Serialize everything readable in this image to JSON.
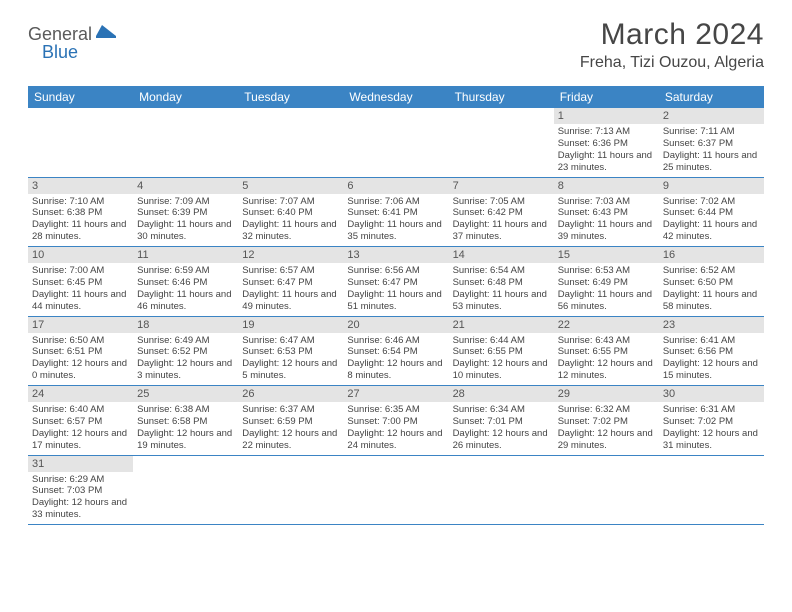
{
  "logo": {
    "part1": "General",
    "part2": "Blue"
  },
  "title": "March 2024",
  "location": "Freha, Tizi Ouzou, Algeria",
  "colors": {
    "header_bar": "#3b84c4",
    "day_num_bg": "#e4e4e4",
    "text": "#444444",
    "title_text": "#464646",
    "logo_gray": "#5a5a5a",
    "logo_blue": "#2a72b5",
    "row_border": "#3b84c4"
  },
  "weekdays": [
    "Sunday",
    "Monday",
    "Tuesday",
    "Wednesday",
    "Thursday",
    "Friday",
    "Saturday"
  ],
  "weeks": [
    [
      {
        "empty": true
      },
      {
        "empty": true
      },
      {
        "empty": true
      },
      {
        "empty": true
      },
      {
        "empty": true
      },
      {
        "num": "1",
        "sunrise": "Sunrise: 7:13 AM",
        "sunset": "Sunset: 6:36 PM",
        "daylight": "Daylight: 11 hours and 23 minutes."
      },
      {
        "num": "2",
        "sunrise": "Sunrise: 7:11 AM",
        "sunset": "Sunset: 6:37 PM",
        "daylight": "Daylight: 11 hours and 25 minutes."
      }
    ],
    [
      {
        "num": "3",
        "sunrise": "Sunrise: 7:10 AM",
        "sunset": "Sunset: 6:38 PM",
        "daylight": "Daylight: 11 hours and 28 minutes."
      },
      {
        "num": "4",
        "sunrise": "Sunrise: 7:09 AM",
        "sunset": "Sunset: 6:39 PM",
        "daylight": "Daylight: 11 hours and 30 minutes."
      },
      {
        "num": "5",
        "sunrise": "Sunrise: 7:07 AM",
        "sunset": "Sunset: 6:40 PM",
        "daylight": "Daylight: 11 hours and 32 minutes."
      },
      {
        "num": "6",
        "sunrise": "Sunrise: 7:06 AM",
        "sunset": "Sunset: 6:41 PM",
        "daylight": "Daylight: 11 hours and 35 minutes."
      },
      {
        "num": "7",
        "sunrise": "Sunrise: 7:05 AM",
        "sunset": "Sunset: 6:42 PM",
        "daylight": "Daylight: 11 hours and 37 minutes."
      },
      {
        "num": "8",
        "sunrise": "Sunrise: 7:03 AM",
        "sunset": "Sunset: 6:43 PM",
        "daylight": "Daylight: 11 hours and 39 minutes."
      },
      {
        "num": "9",
        "sunrise": "Sunrise: 7:02 AM",
        "sunset": "Sunset: 6:44 PM",
        "daylight": "Daylight: 11 hours and 42 minutes."
      }
    ],
    [
      {
        "num": "10",
        "sunrise": "Sunrise: 7:00 AM",
        "sunset": "Sunset: 6:45 PM",
        "daylight": "Daylight: 11 hours and 44 minutes."
      },
      {
        "num": "11",
        "sunrise": "Sunrise: 6:59 AM",
        "sunset": "Sunset: 6:46 PM",
        "daylight": "Daylight: 11 hours and 46 minutes."
      },
      {
        "num": "12",
        "sunrise": "Sunrise: 6:57 AM",
        "sunset": "Sunset: 6:47 PM",
        "daylight": "Daylight: 11 hours and 49 minutes."
      },
      {
        "num": "13",
        "sunrise": "Sunrise: 6:56 AM",
        "sunset": "Sunset: 6:47 PM",
        "daylight": "Daylight: 11 hours and 51 minutes."
      },
      {
        "num": "14",
        "sunrise": "Sunrise: 6:54 AM",
        "sunset": "Sunset: 6:48 PM",
        "daylight": "Daylight: 11 hours and 53 minutes."
      },
      {
        "num": "15",
        "sunrise": "Sunrise: 6:53 AM",
        "sunset": "Sunset: 6:49 PM",
        "daylight": "Daylight: 11 hours and 56 minutes."
      },
      {
        "num": "16",
        "sunrise": "Sunrise: 6:52 AM",
        "sunset": "Sunset: 6:50 PM",
        "daylight": "Daylight: 11 hours and 58 minutes."
      }
    ],
    [
      {
        "num": "17",
        "sunrise": "Sunrise: 6:50 AM",
        "sunset": "Sunset: 6:51 PM",
        "daylight": "Daylight: 12 hours and 0 minutes."
      },
      {
        "num": "18",
        "sunrise": "Sunrise: 6:49 AM",
        "sunset": "Sunset: 6:52 PM",
        "daylight": "Daylight: 12 hours and 3 minutes."
      },
      {
        "num": "19",
        "sunrise": "Sunrise: 6:47 AM",
        "sunset": "Sunset: 6:53 PM",
        "daylight": "Daylight: 12 hours and 5 minutes."
      },
      {
        "num": "20",
        "sunrise": "Sunrise: 6:46 AM",
        "sunset": "Sunset: 6:54 PM",
        "daylight": "Daylight: 12 hours and 8 minutes."
      },
      {
        "num": "21",
        "sunrise": "Sunrise: 6:44 AM",
        "sunset": "Sunset: 6:55 PM",
        "daylight": "Daylight: 12 hours and 10 minutes."
      },
      {
        "num": "22",
        "sunrise": "Sunrise: 6:43 AM",
        "sunset": "Sunset: 6:55 PM",
        "daylight": "Daylight: 12 hours and 12 minutes."
      },
      {
        "num": "23",
        "sunrise": "Sunrise: 6:41 AM",
        "sunset": "Sunset: 6:56 PM",
        "daylight": "Daylight: 12 hours and 15 minutes."
      }
    ],
    [
      {
        "num": "24",
        "sunrise": "Sunrise: 6:40 AM",
        "sunset": "Sunset: 6:57 PM",
        "daylight": "Daylight: 12 hours and 17 minutes."
      },
      {
        "num": "25",
        "sunrise": "Sunrise: 6:38 AM",
        "sunset": "Sunset: 6:58 PM",
        "daylight": "Daylight: 12 hours and 19 minutes."
      },
      {
        "num": "26",
        "sunrise": "Sunrise: 6:37 AM",
        "sunset": "Sunset: 6:59 PM",
        "daylight": "Daylight: 12 hours and 22 minutes."
      },
      {
        "num": "27",
        "sunrise": "Sunrise: 6:35 AM",
        "sunset": "Sunset: 7:00 PM",
        "daylight": "Daylight: 12 hours and 24 minutes."
      },
      {
        "num": "28",
        "sunrise": "Sunrise: 6:34 AM",
        "sunset": "Sunset: 7:01 PM",
        "daylight": "Daylight: 12 hours and 26 minutes."
      },
      {
        "num": "29",
        "sunrise": "Sunrise: 6:32 AM",
        "sunset": "Sunset: 7:02 PM",
        "daylight": "Daylight: 12 hours and 29 minutes."
      },
      {
        "num": "30",
        "sunrise": "Sunrise: 6:31 AM",
        "sunset": "Sunset: 7:02 PM",
        "daylight": "Daylight: 12 hours and 31 minutes."
      }
    ],
    [
      {
        "num": "31",
        "sunrise": "Sunrise: 6:29 AM",
        "sunset": "Sunset: 7:03 PM",
        "daylight": "Daylight: 12 hours and 33 minutes."
      },
      {
        "empty": true
      },
      {
        "empty": true
      },
      {
        "empty": true
      },
      {
        "empty": true
      },
      {
        "empty": true
      },
      {
        "empty": true
      }
    ]
  ]
}
